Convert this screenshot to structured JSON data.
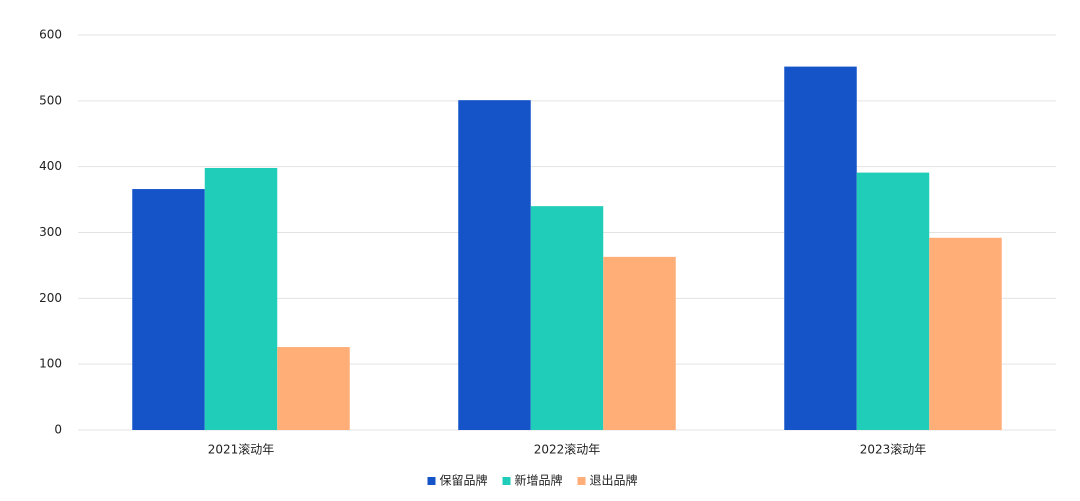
{
  "chart_data": {
    "type": "bar",
    "categories": [
      "2021滚动年",
      "2022滚动年",
      "2023滚动年"
    ],
    "series": [
      {
        "name": "保留品牌",
        "color": "#1554c8",
        "values": [
          366,
          501,
          552
        ]
      },
      {
        "name": "新增品牌",
        "color": "#20cdb9",
        "values": [
          398,
          340,
          391
        ]
      },
      {
        "name": "退出品牌",
        "color": "#ffae78",
        "values": [
          126,
          263,
          292
        ]
      }
    ],
    "ylim": [
      0,
      600
    ],
    "yticks": [
      0,
      100,
      200,
      300,
      400,
      500,
      600
    ],
    "grid": true,
    "legend": "bottom"
  }
}
